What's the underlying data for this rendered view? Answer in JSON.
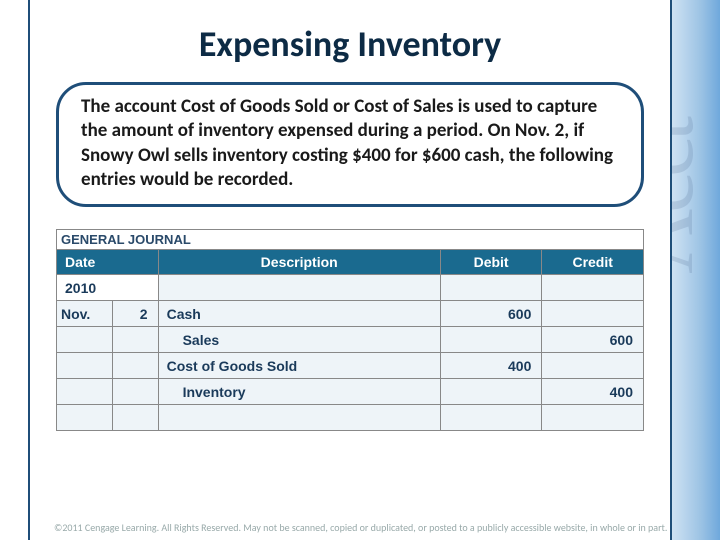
{
  "slide": {
    "title": "Expensing Inventory",
    "callout": "The account Cost of Goods Sold or Cost of Sales is used to capture the amount of inventory expensed during a period. On Nov. 2, if Snowy Owl sells inventory costing $400 for $600 cash, the following entries would be recorded."
  },
  "journal": {
    "header_label": "GENERAL JOURNAL",
    "columns": {
      "date": "Date",
      "description": "Description",
      "debit": "Debit",
      "credit": "Credit"
    },
    "year": "2010",
    "month": "Nov.",
    "day": "2",
    "rows": [
      {
        "desc": "Cash",
        "indent": 0,
        "debit": "600",
        "credit": ""
      },
      {
        "desc": "Sales",
        "indent": 1,
        "debit": "",
        "credit": "600"
      },
      {
        "desc": "Cost of Goods Sold",
        "indent": 0,
        "debit": "400",
        "credit": ""
      },
      {
        "desc": "Inventory",
        "indent": 1,
        "debit": "",
        "credit": "400"
      }
    ]
  },
  "styling": {
    "title_color": "#0d2b45",
    "callout_border": "#1f4e79",
    "th_bg": "#1a6a8f",
    "td_bg": "#eef4f8",
    "side_gradient": [
      "#cfe2f3",
      "#9cc3e4",
      "#6fa8dc"
    ],
    "watermark_text": "Acct",
    "font": "Calibri"
  },
  "copyright": "©2011 Cengage Learning. All Rights Reserved. May not be scanned, copied or duplicated, or posted to a publicly accessible website, in whole or in part."
}
